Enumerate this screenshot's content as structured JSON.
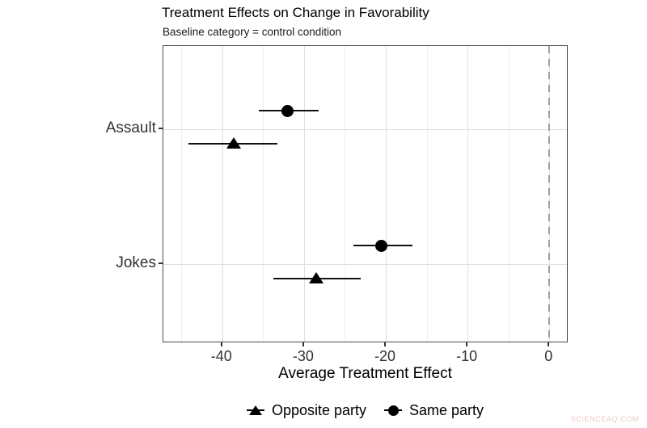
{
  "header": {
    "title": "Treatment Effects on Change in Favorability",
    "subtitle": "Baseline category = control condition"
  },
  "watermark": "SCIENCEAQ.COM",
  "chart_data": {
    "type": "scatter",
    "variant": "dot-whisker-forest",
    "title": "Treatment Effects on Change in Favorability",
    "subtitle": "Baseline category = control condition",
    "xlabel": "Average Treatment Effect",
    "ylabel": "",
    "xlim": [
      -47.2,
      2.35
    ],
    "xticks": [
      -40,
      -30,
      -20,
      -10,
      0
    ],
    "xminor": [
      -45,
      -35,
      -25,
      -15,
      -5
    ],
    "categories": [
      "Assault",
      "Jokes"
    ],
    "refline_x": 0,
    "grid": true,
    "legend_position": "bottom",
    "legend": [
      {
        "marker": "triangle",
        "label": "Opposite party"
      },
      {
        "marker": "circle",
        "label": "Same party"
      }
    ],
    "series": [
      {
        "name": "Same party",
        "marker": "circle",
        "points": [
          {
            "category": "Assault",
            "estimate": -32.0,
            "ci_low": -35.5,
            "ci_high": -28.2
          },
          {
            "category": "Jokes",
            "estimate": -20.5,
            "ci_low": -24.0,
            "ci_high": -16.7
          }
        ]
      },
      {
        "name": "Opposite party",
        "marker": "triangle",
        "points": [
          {
            "category": "Assault",
            "estimate": -38.6,
            "ci_low": -44.1,
            "ci_high": -33.3
          },
          {
            "category": "Jokes",
            "estimate": -28.5,
            "ci_low": -33.7,
            "ci_high": -23.1
          }
        ]
      }
    ],
    "colors": {
      "marker": "#000000",
      "errorbar": "#111111",
      "grid_major": "#e0e0e0",
      "grid_minor": "#ededed",
      "panel_border": "#4a4a4a",
      "refline": "#9e9e9e",
      "axis_text": "#333333",
      "watermark": "#edcbcb"
    }
  }
}
